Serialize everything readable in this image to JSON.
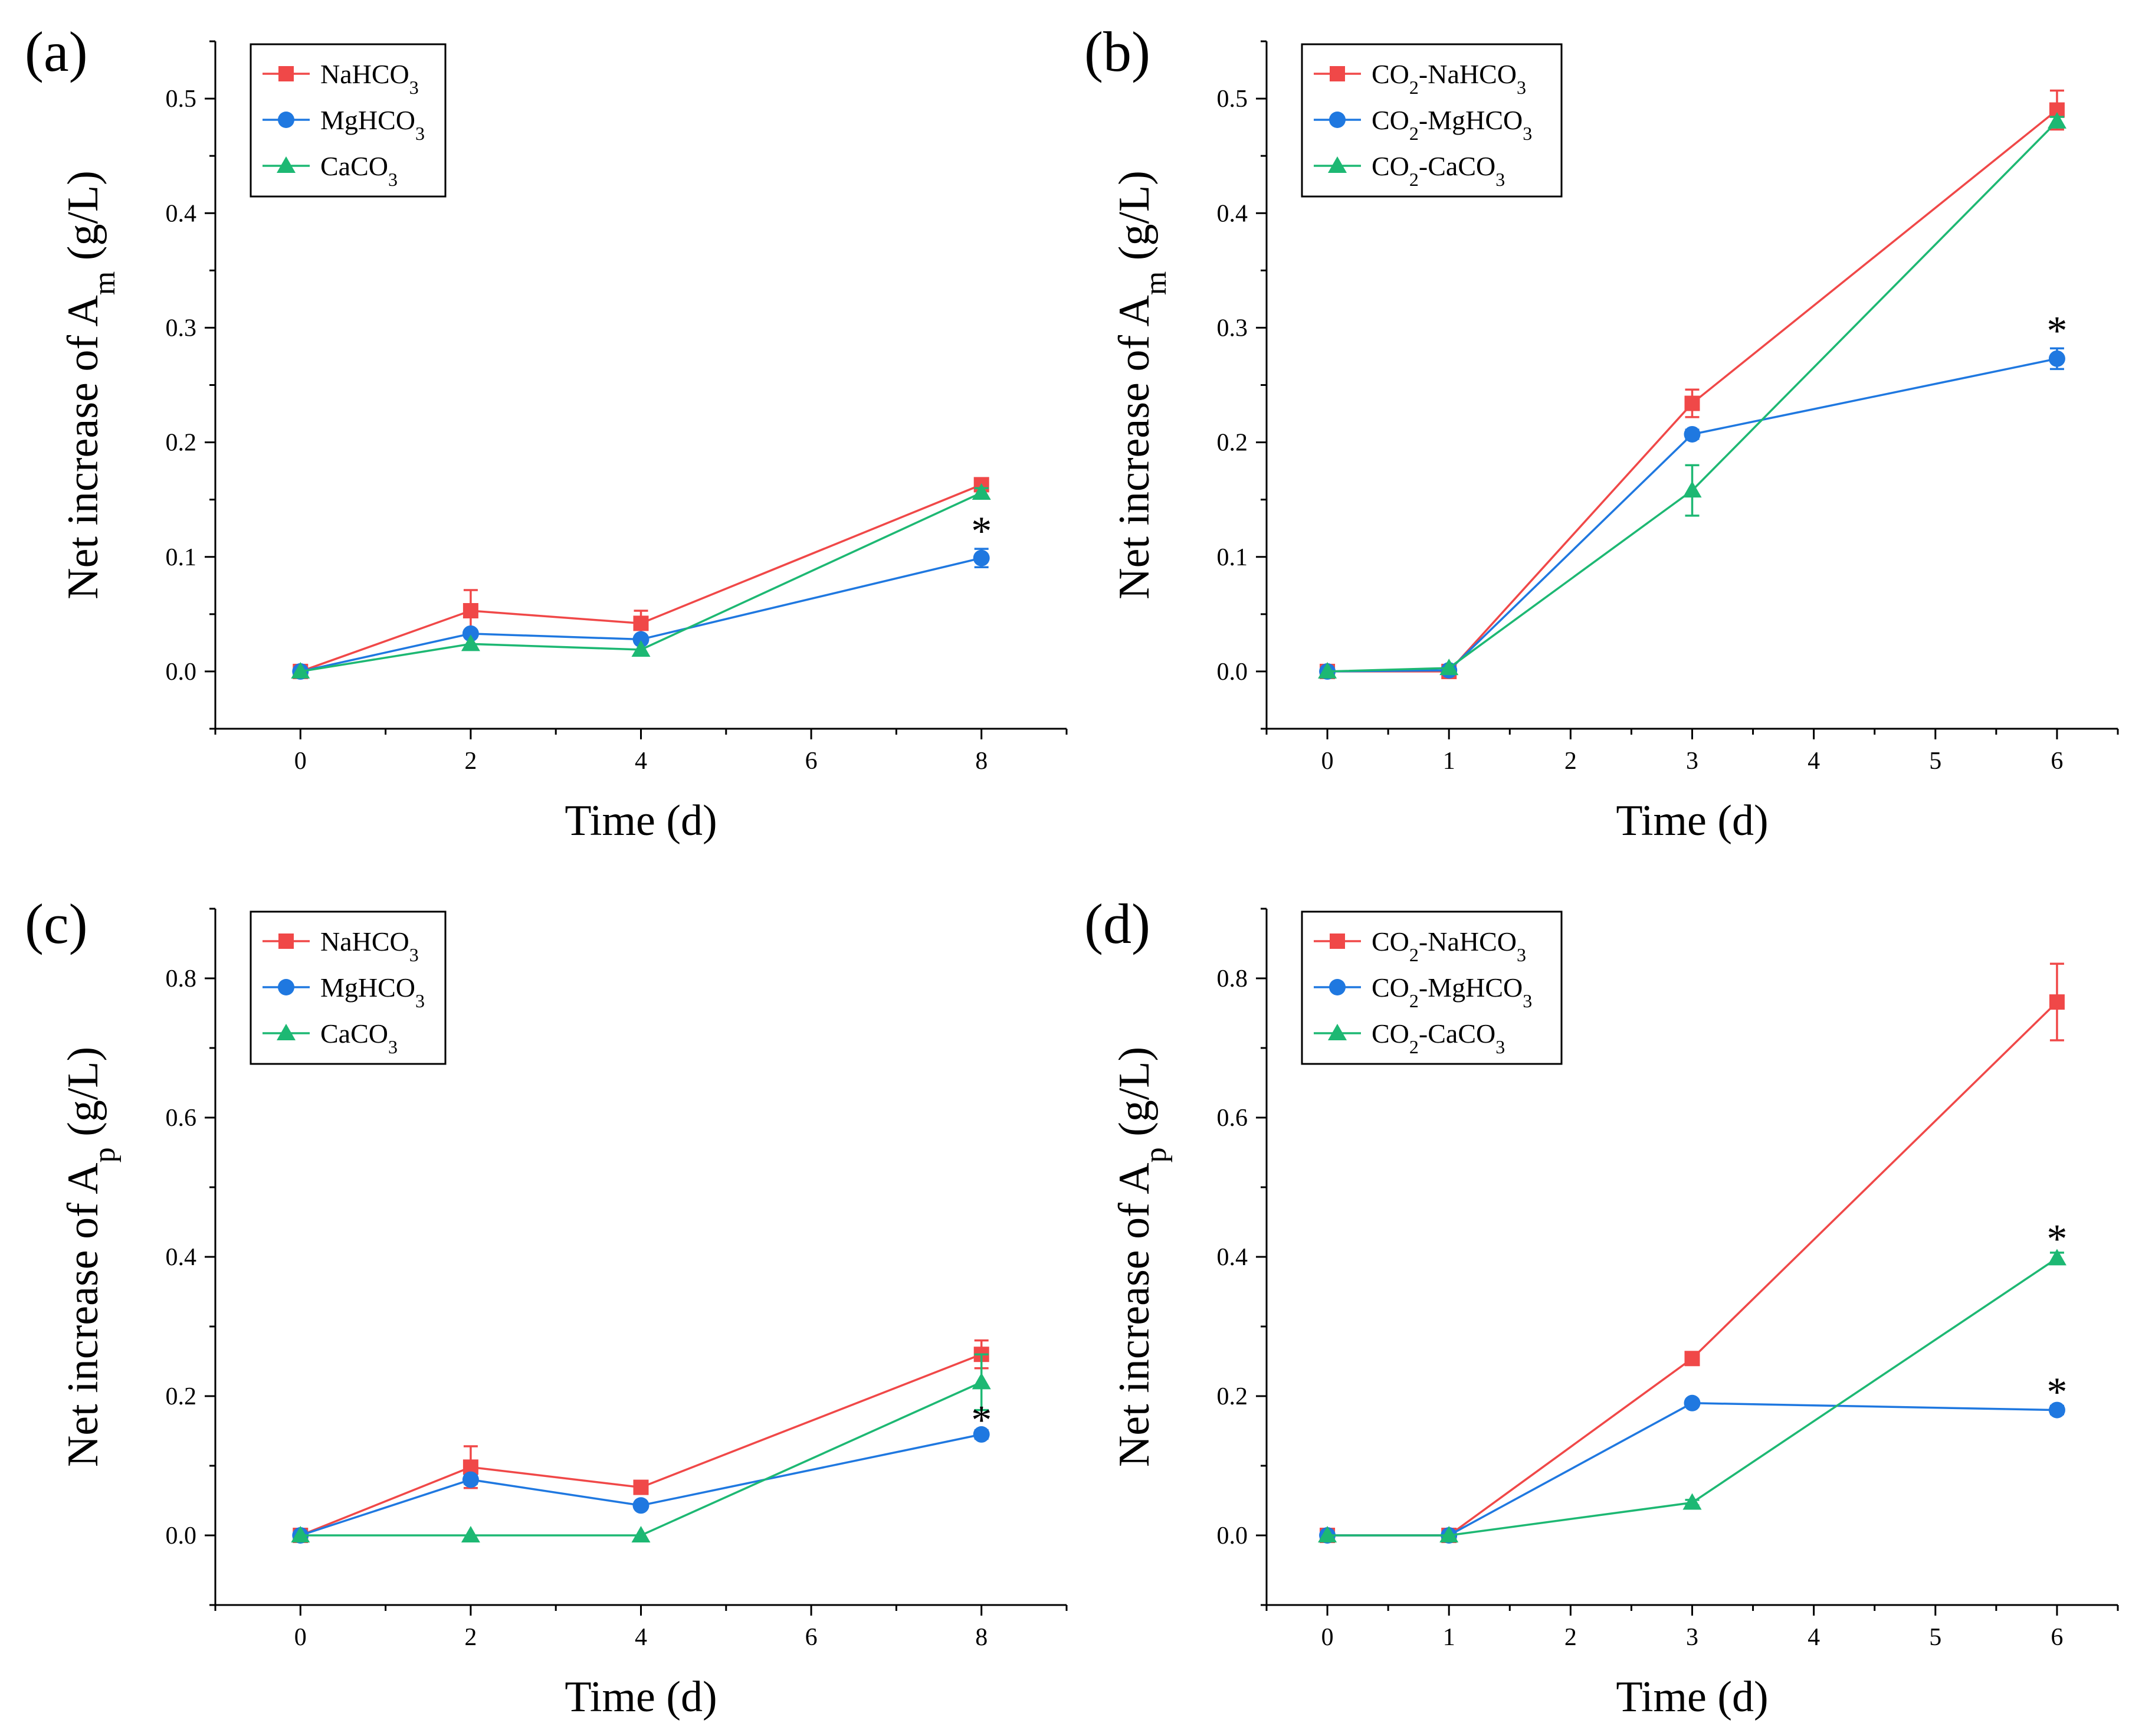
{
  "figure": {
    "colors": {
      "NaHCO3": "#f04848",
      "MgHCO3": "#1f78e0",
      "CaCO3": "#1db873"
    },
    "panels": [
      {
        "label": "(a)",
        "xlabel": "Time (d)",
        "ylabel_main": "Net increase of A",
        "ylabel_sub": "m",
        "ylabel_unit": " (g/L)",
        "legend": [
          {
            "key": "NaHCO3",
            "main": "NaHCO",
            "sub": "3",
            "suffix": ""
          },
          {
            "key": "MgHCO3",
            "main": "MgHCO",
            "sub": "3",
            "suffix": ""
          },
          {
            "key": "CaCO3",
            "main": "CaCO",
            "sub": "3",
            "suffix": ""
          }
        ]
      },
      {
        "label": "(b)",
        "xlabel": "Time (d)",
        "ylabel_main": "Net increase of A",
        "ylabel_sub": "m",
        "ylabel_unit": " (g/L)",
        "legend": [
          {
            "key": "NaHCO3",
            "main": "CO",
            "sub": "2",
            "suffix": "-NaHCO",
            "sub2": "3"
          },
          {
            "key": "MgHCO3",
            "main": "CO",
            "sub": "2",
            "suffix": "-MgHCO",
            "sub2": "3"
          },
          {
            "key": "CaCO3",
            "main": "CO",
            "sub": "2",
            "suffix": "-CaCO",
            "sub2": "3"
          }
        ]
      },
      {
        "label": "(c)",
        "xlabel": "Time (d)",
        "ylabel_main": "Net increase of A",
        "ylabel_sub": "p",
        "ylabel_unit": " (g/L)",
        "legend": [
          {
            "key": "NaHCO3",
            "main": "NaHCO",
            "sub": "3",
            "suffix": ""
          },
          {
            "key": "MgHCO3",
            "main": "MgHCO",
            "sub": "3",
            "suffix": ""
          },
          {
            "key": "CaCO3",
            "main": "CaCO",
            "sub": "3",
            "suffix": ""
          }
        ]
      },
      {
        "label": "(d)",
        "xlabel": "Time (d)",
        "ylabel_main": "Net increase of A",
        "ylabel_sub": "p",
        "ylabel_unit": " (g/L)",
        "legend": [
          {
            "key": "NaHCO3",
            "main": "CO",
            "sub": "2",
            "suffix": "-NaHCO",
            "sub2": "3"
          },
          {
            "key": "MgHCO3",
            "main": "CO",
            "sub": "2",
            "suffix": "-MgHCO",
            "sub2": "3"
          },
          {
            "key": "CaCO3",
            "main": "CO",
            "sub": "2",
            "suffix": "-CaCO",
            "sub2": "3"
          }
        ]
      }
    ]
  },
  "chart_data": [
    {
      "type": "line",
      "title": "(a)",
      "xlabel": "Time (d)",
      "ylabel": "Net increase of Am (g/L)",
      "xlim": [
        -1,
        9
      ],
      "ylim": [
        -0.05,
        0.55
      ],
      "xticks": [
        0,
        2,
        4,
        6,
        8
      ],
      "xtick_labels": [
        "0",
        "2",
        "4",
        "6",
        "8"
      ],
      "yticks": [
        0.0,
        0.1,
        0.2,
        0.3,
        0.4,
        0.5
      ],
      "ytick_labels": [
        "0.0",
        "0.1",
        "0.2",
        "0.3",
        "0.4",
        "0.5"
      ],
      "legend_position": "top-left",
      "series": [
        {
          "name": "NaHCO3",
          "marker": "square",
          "x": [
            0,
            2,
            4,
            8
          ],
          "values": [
            0.0,
            0.053,
            0.042,
            0.163
          ],
          "errors": [
            0.003,
            0.018,
            0.011,
            0.004
          ]
        },
        {
          "name": "MgHCO3",
          "marker": "circle",
          "x": [
            0,
            2,
            4,
            8
          ],
          "values": [
            0.0,
            0.033,
            0.028,
            0.099
          ],
          "errors": [
            0.002,
            0.003,
            0.003,
            0.008
          ]
        },
        {
          "name": "CaCO3",
          "marker": "triangle",
          "x": [
            0,
            2,
            4,
            8
          ],
          "values": [
            0.0,
            0.024,
            0.019,
            0.156
          ],
          "errors": [
            0.002,
            0.002,
            0.002,
            0.004
          ]
        }
      ],
      "annotations": [
        {
          "text": "*",
          "x": 8,
          "y": 0.125
        }
      ]
    },
    {
      "type": "line",
      "title": "(b)",
      "xlabel": "Time (d)",
      "ylabel": "Net increase of Am (g/L)",
      "xlim": [
        -0.5,
        6.5
      ],
      "ylim": [
        -0.05,
        0.55
      ],
      "xticks": [
        0,
        1,
        2,
        3,
        4,
        5,
        6
      ],
      "xtick_labels": [
        "0",
        "1",
        "2",
        "3",
        "4",
        "5",
        "6"
      ],
      "yticks": [
        0.0,
        0.1,
        0.2,
        0.3,
        0.4,
        0.5
      ],
      "ytick_labels": [
        "0.0",
        "0.1",
        "0.2",
        "0.3",
        "0.4",
        "0.5"
      ],
      "legend_position": "top-left",
      "series": [
        {
          "name": "CO2-NaHCO3",
          "marker": "square",
          "x": [
            0,
            1,
            3,
            6
          ],
          "values": [
            0.0,
            0.0,
            0.234,
            0.49
          ],
          "errors": [
            0.003,
            0.003,
            0.012,
            0.017
          ]
        },
        {
          "name": "CO2-MgHCO3",
          "marker": "circle",
          "x": [
            0,
            1,
            3,
            6
          ],
          "values": [
            0.0,
            0.001,
            0.207,
            0.273
          ],
          "errors": [
            0.002,
            0.002,
            0.004,
            0.009
          ]
        },
        {
          "name": "CO2-CaCO3",
          "marker": "triangle",
          "x": [
            0,
            1,
            3,
            6
          ],
          "values": [
            0.0,
            0.003,
            0.158,
            0.48
          ],
          "errors": [
            0.002,
            0.002,
            0.022,
            0.004
          ]
        }
      ],
      "annotations": [
        {
          "text": "*",
          "x": 6,
          "y": 0.3
        }
      ]
    },
    {
      "type": "line",
      "title": "(c)",
      "xlabel": "Time (d)",
      "ylabel": "Net increase of Ap (g/L)",
      "xlim": [
        -1,
        9
      ],
      "ylim": [
        -0.1,
        0.9
      ],
      "xticks": [
        0,
        2,
        4,
        6,
        8
      ],
      "xtick_labels": [
        "0",
        "2",
        "4",
        "6",
        "8"
      ],
      "yticks": [
        0.0,
        0.2,
        0.4,
        0.6,
        0.8
      ],
      "ytick_labels": [
        "0.0",
        "0.2",
        "0.4",
        "0.6",
        "0.8"
      ],
      "legend_position": "top-left",
      "series": [
        {
          "name": "NaHCO3",
          "marker": "square",
          "x": [
            0,
            2,
            4,
            8
          ],
          "values": [
            0.0,
            0.098,
            0.069,
            0.26
          ],
          "errors": [
            0.004,
            0.03,
            0.007,
            0.02
          ]
        },
        {
          "name": "MgHCO3",
          "marker": "circle",
          "x": [
            0,
            2,
            4,
            8
          ],
          "values": [
            0.0,
            0.08,
            0.043,
            0.145
          ],
          "errors": [
            0.003,
            0.006,
            0.004,
            0.006
          ]
        },
        {
          "name": "CaCO3",
          "marker": "triangle",
          "x": [
            0,
            2,
            4,
            8
          ],
          "values": [
            0.0,
            0.0,
            0.0,
            0.22
          ],
          "errors": [
            0.002,
            0.002,
            0.002,
            0.04
          ]
        }
      ],
      "annotations": [
        {
          "text": "*",
          "x": 8,
          "y": 0.17
        }
      ]
    },
    {
      "type": "line",
      "title": "(d)",
      "xlabel": "Time (d)",
      "ylabel": "Net increase of Ap (g/L)",
      "xlim": [
        -0.5,
        6.5
      ],
      "ylim": [
        -0.1,
        0.9
      ],
      "xticks": [
        0,
        1,
        2,
        3,
        4,
        5,
        6
      ],
      "xtick_labels": [
        "0",
        "1",
        "2",
        "3",
        "4",
        "5",
        "6"
      ],
      "yticks": [
        0.0,
        0.2,
        0.4,
        0.6,
        0.8
      ],
      "ytick_labels": [
        "0.0",
        "0.2",
        "0.4",
        "0.6",
        "0.8"
      ],
      "legend_position": "top-left",
      "series": [
        {
          "name": "CO2-NaHCO3",
          "marker": "square",
          "x": [
            0,
            1,
            3,
            6
          ],
          "values": [
            0.0,
            0.0,
            0.254,
            0.766
          ],
          "errors": [
            0.003,
            0.003,
            0.006,
            0.055
          ]
        },
        {
          "name": "CO2-MgHCO3",
          "marker": "circle",
          "x": [
            0,
            1,
            3,
            6
          ],
          "values": [
            0.0,
            0.0,
            0.19,
            0.18
          ],
          "errors": [
            0.002,
            0.002,
            0.005,
            0.006
          ]
        },
        {
          "name": "CO2-CaCO3",
          "marker": "triangle",
          "x": [
            0,
            1,
            3,
            6
          ],
          "values": [
            0.0,
            0.0,
            0.047,
            0.398
          ],
          "errors": [
            0.002,
            0.002,
            0.004,
            0.008
          ]
        }
      ],
      "annotations": [
        {
          "text": "*",
          "x": 6,
          "y": 0.43
        },
        {
          "text": "*",
          "x": 6,
          "y": 0.21
        }
      ]
    }
  ]
}
